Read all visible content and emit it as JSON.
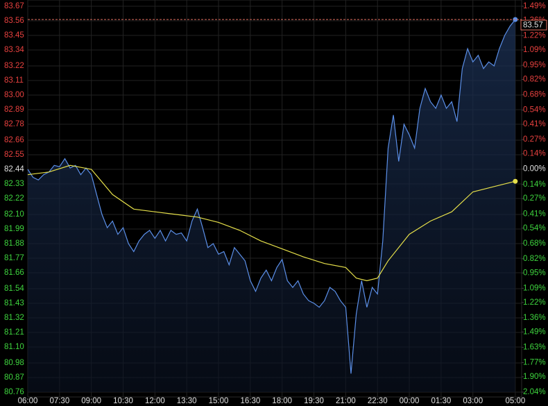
{
  "chart_data": {
    "type": "line",
    "xlim": [
      0,
      23.3
    ],
    "xticks": [
      {
        "value": 0,
        "label": "06:00"
      },
      {
        "value": 1.5,
        "label": "07:30"
      },
      {
        "value": 3,
        "label": "09:00"
      },
      {
        "value": 4.5,
        "label": "10:30"
      },
      {
        "value": 6,
        "label": "12:00"
      },
      {
        "value": 7.5,
        "label": "13:30"
      },
      {
        "value": 9,
        "label": "15:00"
      },
      {
        "value": 10.5,
        "label": "16:30"
      },
      {
        "value": 12,
        "label": "18:00"
      },
      {
        "value": 13.5,
        "label": "19:30"
      },
      {
        "value": 15,
        "label": "21:00"
      },
      {
        "value": 16.5,
        "label": "22:30"
      },
      {
        "value": 18,
        "label": "00:00"
      },
      {
        "value": 19.5,
        "label": "01:30"
      },
      {
        "value": 21,
        "label": "03:00"
      },
      {
        "value": 23,
        "label": "05:00"
      }
    ],
    "ylim": [
      80.76,
      83.67
    ],
    "yticks": [
      83.67,
      83.56,
      83.45,
      83.34,
      83.22,
      83.11,
      {
        "value": 83.0,
        "label": "83.00"
      },
      82.89,
      82.78,
      82.66,
      82.55,
      82.44,
      82.33,
      82.22,
      {
        "value": 82.1,
        "label": "82.10"
      },
      81.99,
      81.88,
      81.77,
      81.66,
      81.54,
      81.43,
      81.32,
      81.21,
      {
        "value": 81.1,
        "label": "81.10"
      },
      80.98,
      80.87,
      80.76
    ],
    "y2lim": [
      -2.04,
      1.49
    ],
    "y2ticks": [
      {
        "value": 1.49,
        "label": "1.49%"
      },
      {
        "value": 1.36,
        "label": "1.36%"
      },
      {
        "value": 1.22,
        "label": "1.22%"
      },
      {
        "value": 1.09,
        "label": "1.09%"
      },
      {
        "value": 0.95,
        "label": "0.95%"
      },
      {
        "value": 0.82,
        "label": "0.82%"
      },
      {
        "value": 0.68,
        "label": "0.68%"
      },
      {
        "value": 0.54,
        "label": "0.54%"
      },
      {
        "value": 0.41,
        "label": "0.41%"
      },
      {
        "value": 0.27,
        "label": "0.27%"
      },
      {
        "value": 0.14,
        "label": "0.14%"
      },
      {
        "value": 0.0,
        "label": "0.00%"
      },
      {
        "value": -0.14,
        "label": "0.14%"
      },
      {
        "value": -0.27,
        "label": "0.27%"
      },
      {
        "value": -0.41,
        "label": "0.41%"
      },
      {
        "value": -0.54,
        "label": "0.54%"
      },
      {
        "value": -0.68,
        "label": "0.68%"
      },
      {
        "value": -0.82,
        "label": "0.82%"
      },
      {
        "value": -0.95,
        "label": "0.95%"
      },
      {
        "value": -1.09,
        "label": "1.09%"
      },
      {
        "value": -1.22,
        "label": "1.22%"
      },
      {
        "value": -1.36,
        "label": "1.36%"
      },
      {
        "value": -1.49,
        "label": "1.49%"
      },
      {
        "value": -1.63,
        "label": "1.63%"
      },
      {
        "value": -1.77,
        "label": "1.77%"
      },
      {
        "value": -1.9,
        "label": "1.90%"
      },
      {
        "value": -2.04,
        "label": "2.04%"
      }
    ],
    "axis_colors": {
      "up": "#e8413f",
      "down": "#3ed43e",
      "flat": "#e0e0e0"
    },
    "grid": true,
    "series": [
      {
        "color": "#5b8fe8",
        "fill": true,
        "x": [
          0,
          0.25,
          0.5,
          0.75,
          1,
          1.25,
          1.5,
          1.75,
          2,
          2.25,
          2.5,
          2.75,
          3,
          3.25,
          3.5,
          3.75,
          4,
          4.25,
          4.5,
          4.75,
          5,
          5.25,
          5.5,
          5.75,
          6,
          6.25,
          6.5,
          6.75,
          7,
          7.25,
          7.5,
          7.75,
          8,
          8.25,
          8.5,
          8.75,
          9,
          9.25,
          9.5,
          9.75,
          10,
          10.25,
          10.5,
          10.75,
          11,
          11.25,
          11.5,
          11.75,
          12,
          12.25,
          12.5,
          12.75,
          13,
          13.25,
          13.5,
          13.75,
          14,
          14.25,
          14.5,
          14.75,
          15,
          15.25,
          15.5,
          15.75,
          16,
          16.25,
          16.5,
          16.75,
          17,
          17.25,
          17.5,
          17.75,
          18,
          18.25,
          18.5,
          18.75,
          19,
          19.25,
          19.5,
          19.75,
          20,
          20.25,
          20.5,
          20.75,
          21,
          21.25,
          21.5,
          21.75,
          22,
          22.25,
          22.5,
          22.75,
          23
        ],
        "values": [
          82.44,
          82.38,
          82.36,
          82.4,
          82.42,
          82.47,
          82.46,
          82.52,
          82.45,
          82.47,
          82.4,
          82.45,
          82.4,
          82.25,
          82.1,
          82.0,
          82.05,
          81.95,
          82.0,
          81.88,
          81.82,
          81.9,
          81.95,
          81.98,
          81.92,
          81.98,
          81.9,
          81.98,
          81.95,
          81.96,
          81.9,
          82.05,
          82.14,
          82.0,
          81.85,
          81.88,
          81.8,
          81.82,
          81.72,
          81.85,
          81.8,
          81.75,
          81.6,
          81.52,
          81.62,
          81.68,
          81.6,
          81.7,
          81.76,
          81.6,
          81.55,
          81.6,
          81.5,
          81.45,
          81.43,
          81.4,
          81.45,
          81.55,
          81.52,
          81.45,
          81.4,
          80.9,
          81.35,
          81.6,
          81.4,
          81.55,
          81.5,
          81.9,
          82.6,
          82.85,
          82.5,
          82.78,
          82.7,
          82.6,
          82.9,
          83.05,
          82.95,
          82.9,
          83.0,
          82.9,
          82.95,
          82.8,
          83.2,
          83.35,
          83.25,
          83.3,
          83.2,
          83.25,
          83.22,
          83.35,
          83.45,
          83.52,
          83.57
        ]
      },
      {
        "color": "#e6e04a",
        "fill": false,
        "x": [
          0,
          1,
          2,
          3,
          4,
          5,
          6,
          7,
          8,
          9,
          10,
          11,
          12,
          13,
          14,
          15,
          15.5,
          16,
          16.5,
          17,
          18,
          19,
          20,
          21,
          22,
          23
        ],
        "values": [
          82.4,
          82.42,
          82.47,
          82.44,
          82.25,
          82.14,
          82.12,
          82.1,
          82.08,
          82.04,
          81.98,
          81.9,
          81.84,
          81.78,
          81.73,
          81.7,
          81.62,
          81.6,
          81.62,
          81.75,
          81.95,
          82.05,
          82.12,
          82.27,
          82.31,
          82.35
        ]
      }
    ]
  }
}
